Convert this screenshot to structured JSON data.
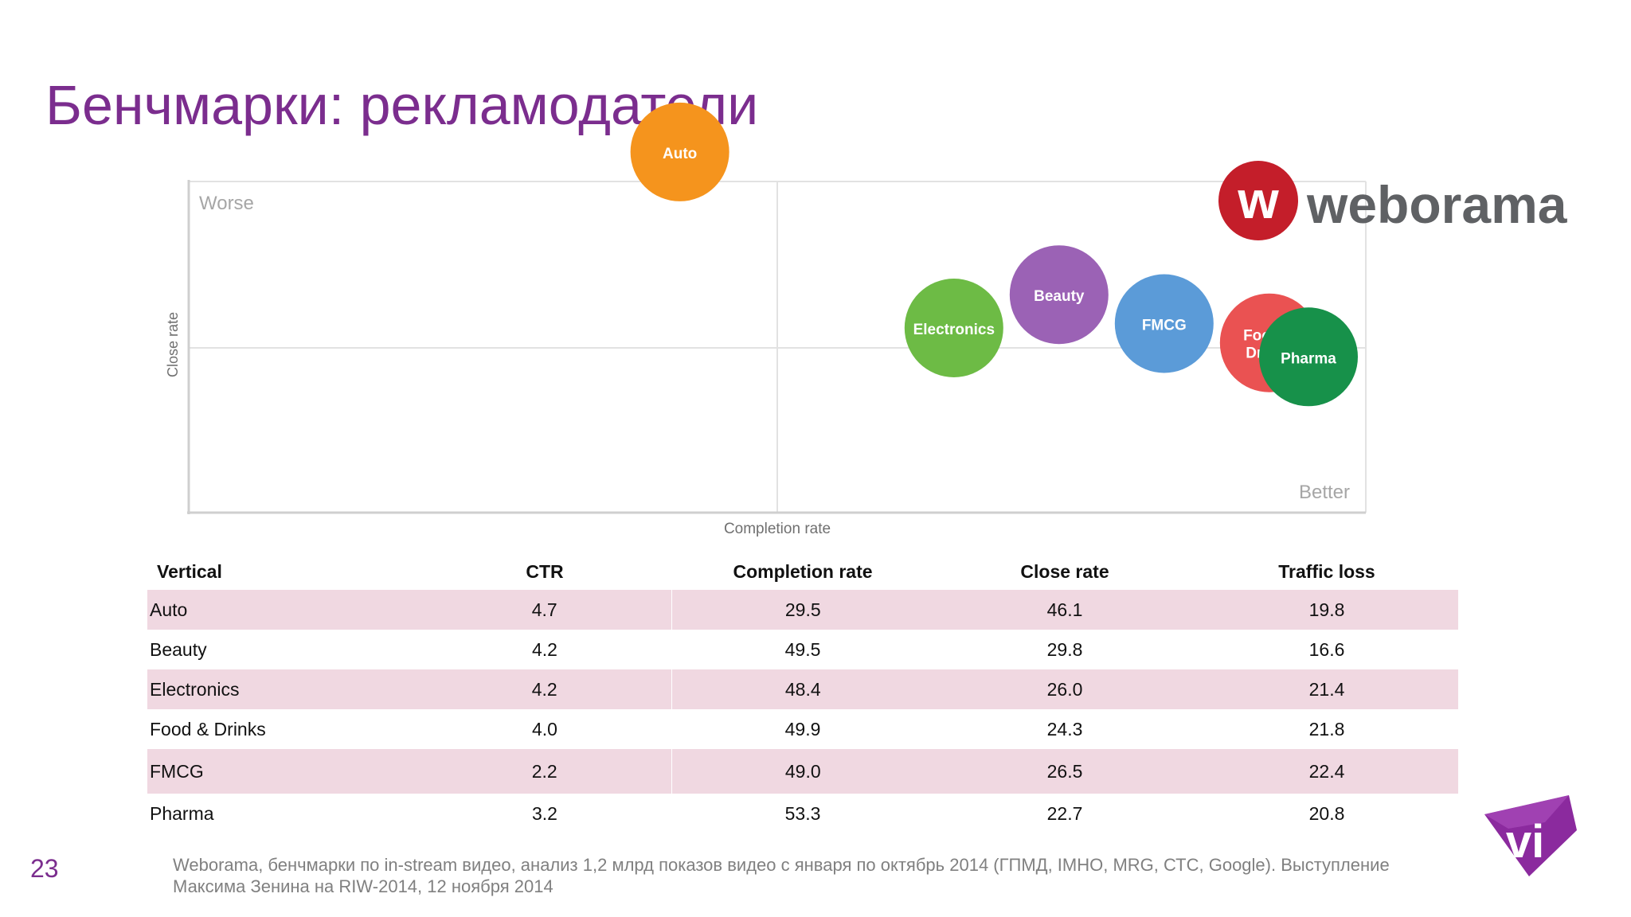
{
  "slide": {
    "title": "Бенчмарки: рекламодатели",
    "page_number": "23",
    "footnote": "Weborama, бенчмарки по in-stream видео, анализ 1,2 млрд показов видео с января по октябрь 2014 (ГПМД, IMHO, MRG, СТС, Google). Выступление Максима Зенина на RIW-2014, 12 ноября 2014"
  },
  "logos": {
    "weborama": {
      "mark": "w",
      "wordmark": "weborama",
      "mark_color": "#c41e2a",
      "wordmark_color": "#5f6164"
    },
    "vi": {
      "mark": "vi",
      "color": "#8b2a9e"
    }
  },
  "chart_data": [
    {
      "type": "scatter",
      "xlabel": "Completion rate",
      "ylabel": "Close rate",
      "annotations": {
        "top_left": "Worse",
        "bottom_right": "Better"
      },
      "points": [
        {
          "label": [
            "Auto"
          ],
          "completion_rate": 29.5,
          "close_rate": 46.1,
          "color": "#f5941d"
        },
        {
          "label": [
            "Electronics"
          ],
          "completion_rate": 48.4,
          "close_rate": 26.0,
          "color": "#6dbb45"
        },
        {
          "label": [
            "Beauty"
          ],
          "completion_rate": 49.5,
          "close_rate": 29.8,
          "color": "#9b62b5"
        },
        {
          "label": [
            "FMCG"
          ],
          "completion_rate": 49.0,
          "close_rate": 26.5,
          "color": "#5b9bd8"
        },
        {
          "label": [
            "Food &",
            "Drinks"
          ],
          "completion_rate": 49.9,
          "close_rate": 24.3,
          "color": "#ea5252"
        },
        {
          "label": [
            "Pharma"
          ],
          "completion_rate": 53.3,
          "close_rate": 22.7,
          "color": "#17914a"
        }
      ],
      "grid": true
    },
    {
      "type": "table",
      "columns": [
        "Vertical",
        "CTR",
        "Completion rate",
        "Close rate",
        "Traffic loss"
      ],
      "rows": [
        [
          "Auto",
          "4.7",
          "29.5",
          "46.1",
          "19.8"
        ],
        [
          "Beauty",
          "4.2",
          "49.5",
          "29.8",
          "16.6"
        ],
        [
          "Electronics",
          "4.2",
          "48.4",
          "26.0",
          "21.4"
        ],
        [
          "Food & Drinks",
          "4.0",
          "49.9",
          "24.3",
          "21.8"
        ],
        [
          "FMCG",
          "2.2",
          "49.0",
          "26.5",
          "22.4"
        ],
        [
          "Pharma",
          "3.2",
          "53.3",
          "22.7",
          "20.8"
        ]
      ],
      "shaded_rows": [
        0,
        2,
        4
      ],
      "shade_color": "#f0d8e1"
    }
  ]
}
